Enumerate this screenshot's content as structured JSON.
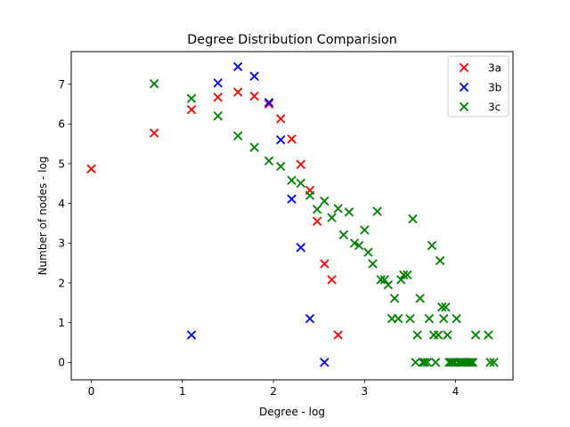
{
  "chart_data": {
    "type": "scatter",
    "title": "Degree Distribution Comparision",
    "xlabel": "Degree - log",
    "ylabel": "Number of nodes - log",
    "xlim": [
      -0.22,
      4.63
    ],
    "ylim": [
      -0.44,
      7.82
    ],
    "xticks": [
      0,
      1,
      2,
      3,
      4
    ],
    "yticks": [
      0,
      1,
      2,
      3,
      4,
      5,
      6,
      7
    ],
    "grid": false,
    "legend_position": "top-right",
    "marker": "X",
    "series": [
      {
        "name": "3a",
        "color": "#ff0000",
        "points": [
          [
            0.0,
            4.87
          ],
          [
            0.69,
            5.77
          ],
          [
            1.1,
            6.36
          ],
          [
            1.39,
            6.67
          ],
          [
            1.61,
            6.8
          ],
          [
            1.79,
            6.7
          ],
          [
            1.95,
            6.5
          ],
          [
            2.08,
            6.13
          ],
          [
            2.2,
            5.62
          ],
          [
            2.3,
            4.98
          ],
          [
            2.4,
            4.33
          ],
          [
            2.48,
            3.55
          ],
          [
            2.56,
            2.48
          ],
          [
            2.64,
            2.08
          ],
          [
            2.71,
            0.69
          ]
        ]
      },
      {
        "name": "3b",
        "color": "#0000ff",
        "points": [
          [
            1.1,
            0.69
          ],
          [
            1.39,
            7.03
          ],
          [
            1.61,
            7.44
          ],
          [
            1.79,
            7.2
          ],
          [
            1.95,
            6.54
          ],
          [
            2.08,
            5.6
          ],
          [
            2.2,
            4.11
          ],
          [
            2.3,
            2.89
          ],
          [
            2.4,
            1.1
          ],
          [
            2.56,
            0.0
          ]
        ]
      },
      {
        "name": "3c",
        "color": "#008000",
        "points": [
          [
            0.69,
            7.01
          ],
          [
            1.1,
            6.64
          ],
          [
            1.39,
            6.2
          ],
          [
            1.61,
            5.7
          ],
          [
            1.79,
            5.41
          ],
          [
            1.95,
            5.07
          ],
          [
            2.08,
            4.93
          ],
          [
            2.2,
            4.58
          ],
          [
            2.3,
            4.51
          ],
          [
            2.4,
            4.2
          ],
          [
            2.48,
            3.85
          ],
          [
            2.56,
            4.06
          ],
          [
            2.64,
            3.64
          ],
          [
            2.71,
            3.87
          ],
          [
            2.77,
            3.21
          ],
          [
            2.83,
            3.78
          ],
          [
            2.89,
            3.0
          ],
          [
            2.94,
            2.94
          ],
          [
            3.0,
            3.33
          ],
          [
            3.04,
            2.77
          ],
          [
            3.09,
            2.48
          ],
          [
            3.14,
            3.8
          ],
          [
            3.18,
            2.08
          ],
          [
            3.22,
            2.08
          ],
          [
            3.26,
            1.95
          ],
          [
            3.3,
            1.1
          ],
          [
            3.33,
            1.61
          ],
          [
            3.37,
            1.1
          ],
          [
            3.4,
            2.08
          ],
          [
            3.43,
            2.2
          ],
          [
            3.47,
            2.2
          ],
          [
            3.5,
            1.1
          ],
          [
            3.53,
            3.61
          ],
          [
            3.56,
            0.0
          ],
          [
            3.58,
            0.69
          ],
          [
            3.61,
            1.61
          ],
          [
            3.64,
            0.0
          ],
          [
            3.66,
            0.0
          ],
          [
            3.69,
            0.0
          ],
          [
            3.71,
            1.1
          ],
          [
            3.74,
            2.94
          ],
          [
            3.76,
            0.69
          ],
          [
            3.78,
            0.0
          ],
          [
            3.81,
            0.69
          ],
          [
            3.83,
            2.56
          ],
          [
            3.85,
            1.39
          ],
          [
            3.87,
            1.1
          ],
          [
            3.89,
            1.39
          ],
          [
            3.91,
            0.69
          ],
          [
            3.93,
            0.0
          ],
          [
            3.95,
            0.0
          ],
          [
            3.97,
            0.0
          ],
          [
            3.99,
            0.0
          ],
          [
            4.01,
            1.1
          ],
          [
            4.03,
            0.0
          ],
          [
            4.05,
            0.0
          ],
          [
            4.07,
            0.0
          ],
          [
            4.09,
            0.0
          ],
          [
            4.11,
            0.0
          ],
          [
            4.13,
            0.0
          ],
          [
            4.15,
            0.0
          ],
          [
            4.17,
            0.0
          ],
          [
            4.19,
            0.0
          ],
          [
            4.22,
            0.69
          ],
          [
            4.36,
            0.69
          ],
          [
            4.38,
            0.0
          ],
          [
            4.42,
            0.0
          ]
        ]
      }
    ]
  }
}
